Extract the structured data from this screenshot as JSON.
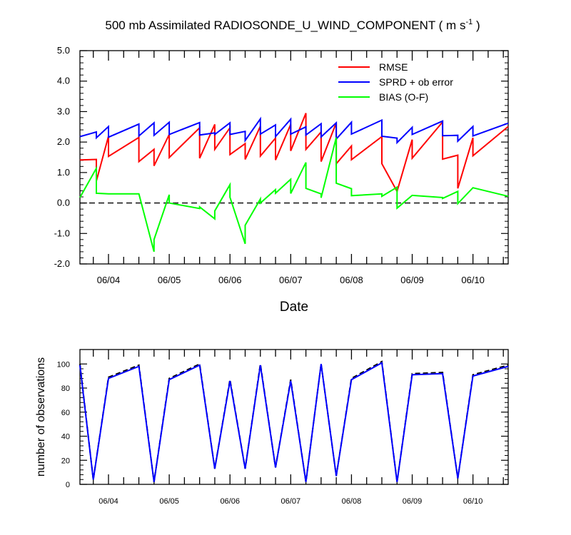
{
  "page": {
    "title_main": "500 mb Assimilated RADIOSONDE_U_WIND_COMPONENT ( m s",
    "title_sup": "-1",
    "title_end": " )"
  },
  "colors": {
    "rmse": "#ff0000",
    "spread": "#0000ff",
    "bias": "#00ff00",
    "obs_possible": "#000000",
    "obs_used": "#0000ff",
    "zero_line": "#000000"
  },
  "chart_data": [
    {
      "type": "line",
      "title": "500 mb Assimilated RADIOSONDE_U_WIND_COMPONENT ( m s-1 )",
      "xlabel": "Date",
      "ylabel": "",
      "x_unit": "days (ticks at 00Z)",
      "xlim": [
        3.53,
        10.58
      ],
      "ylim": [
        -2.0,
        5.0
      ],
      "yticks": [
        -2.0,
        -1.0,
        0.0,
        1.0,
        2.0,
        3.0,
        4.0,
        5.0
      ],
      "ytick_labels": [
        "-2.0",
        "-1.0",
        "0.0",
        "1.0",
        "2.0",
        "3.0",
        "4.0",
        "5.0"
      ],
      "xticks": [
        4,
        5,
        6,
        7,
        8,
        9,
        10
      ],
      "xtick_labels": [
        "06/04",
        "06/05",
        "06/06",
        "06/07",
        "06/08",
        "06/09",
        "06/10"
      ],
      "reference_line": {
        "y": 0.0,
        "style": "dashed"
      },
      "legend_position": "top-right",
      "series": [
        {
          "name": "RMSE",
          "color": "#ff0000",
          "points": [
            [
              3.53,
              1.41
            ],
            [
              3.8,
              1.43
            ],
            [
              3.8,
              0.72
            ],
            [
              4.0,
              2.19
            ],
            [
              4.0,
              1.53
            ],
            [
              4.5,
              2.15
            ],
            [
              4.5,
              1.36
            ],
            [
              4.75,
              1.76
            ],
            [
              4.75,
              1.22
            ],
            [
              5.0,
              2.25
            ],
            [
              5.0,
              1.49
            ],
            [
              5.5,
              2.47
            ],
            [
              5.5,
              1.47
            ],
            [
              5.75,
              2.58
            ],
            [
              5.75,
              1.76
            ],
            [
              6.0,
              2.47
            ],
            [
              6.0,
              1.59
            ],
            [
              6.25,
              1.95
            ],
            [
              6.25,
              1.43
            ],
            [
              6.5,
              2.52
            ],
            [
              6.5,
              1.54
            ],
            [
              6.75,
              2.13
            ],
            [
              6.75,
              1.41
            ],
            [
              7.0,
              2.58
            ],
            [
              7.0,
              1.71
            ],
            [
              7.25,
              2.95
            ],
            [
              7.25,
              1.76
            ],
            [
              7.5,
              2.33
            ],
            [
              7.5,
              1.36
            ],
            [
              7.75,
              2.63
            ],
            [
              7.75,
              1.29
            ],
            [
              8.0,
              1.87
            ],
            [
              8.0,
              1.42
            ],
            [
              8.5,
              2.18
            ],
            [
              8.5,
              1.29
            ],
            [
              8.75,
              0.38
            ],
            [
              9.0,
              2.08
            ],
            [
              9.0,
              1.47
            ],
            [
              9.5,
              2.66
            ],
            [
              9.5,
              1.44
            ],
            [
              9.75,
              1.57
            ],
            [
              9.75,
              0.48
            ],
            [
              10.0,
              2.14
            ],
            [
              10.0,
              1.55
            ],
            [
              10.58,
              2.51
            ]
          ]
        },
        {
          "name": "SPRD + ob error",
          "color": "#0000ff",
          "points": [
            [
              3.53,
              2.18
            ],
            [
              3.8,
              2.33
            ],
            [
              3.8,
              2.14
            ],
            [
              4.0,
              2.51
            ],
            [
              4.0,
              2.16
            ],
            [
              4.5,
              2.59
            ],
            [
              4.5,
              2.2
            ],
            [
              4.75,
              2.63
            ],
            [
              4.75,
              2.22
            ],
            [
              5.0,
              2.65
            ],
            [
              5.0,
              2.25
            ],
            [
              5.5,
              2.64
            ],
            [
              5.5,
              2.23
            ],
            [
              5.75,
              2.3
            ],
            [
              5.75,
              2.25
            ],
            [
              6.0,
              2.63
            ],
            [
              6.0,
              2.25
            ],
            [
              6.25,
              2.35
            ],
            [
              6.25,
              2.05
            ],
            [
              6.5,
              2.76
            ],
            [
              6.5,
              2.26
            ],
            [
              6.75,
              2.56
            ],
            [
              6.75,
              2.18
            ],
            [
              7.0,
              2.75
            ],
            [
              7.0,
              2.26
            ],
            [
              7.25,
              2.5
            ],
            [
              7.25,
              2.23
            ],
            [
              7.5,
              2.6
            ],
            [
              7.5,
              2.17
            ],
            [
              7.75,
              2.63
            ],
            [
              7.75,
              2.1
            ],
            [
              8.0,
              2.65
            ],
            [
              8.0,
              2.26
            ],
            [
              8.5,
              2.72
            ],
            [
              8.5,
              2.19
            ],
            [
              8.75,
              2.13
            ],
            [
              8.75,
              1.98
            ],
            [
              9.0,
              2.48
            ],
            [
              9.0,
              2.25
            ],
            [
              9.5,
              2.69
            ],
            [
              9.5,
              2.21
            ],
            [
              9.75,
              2.22
            ],
            [
              9.75,
              2.03
            ],
            [
              10.0,
              2.51
            ],
            [
              10.0,
              2.2
            ],
            [
              10.58,
              2.62
            ]
          ]
        },
        {
          "name": "BIAS (O-F)",
          "color": "#00ff00",
          "points": [
            [
              3.53,
              0.18
            ],
            [
              3.8,
              1.14
            ],
            [
              3.8,
              0.32
            ],
            [
              4.0,
              0.3
            ],
            [
              4.5,
              0.3
            ],
            [
              4.75,
              -1.6
            ],
            [
              4.75,
              -1.2
            ],
            [
              5.0,
              0.27
            ],
            [
              5.0,
              0.0
            ],
            [
              5.5,
              -0.18
            ],
            [
              5.5,
              -0.13
            ],
            [
              5.75,
              -0.52
            ],
            [
              5.75,
              -0.26
            ],
            [
              6.0,
              0.6
            ],
            [
              6.0,
              0.19
            ],
            [
              6.25,
              -1.34
            ],
            [
              6.25,
              -0.73
            ],
            [
              6.5,
              0.13
            ],
            [
              6.5,
              0.0
            ],
            [
              6.75,
              0.44
            ],
            [
              6.75,
              0.32
            ],
            [
              7.0,
              0.78
            ],
            [
              7.0,
              0.31
            ],
            [
              7.25,
              1.33
            ],
            [
              7.25,
              0.48
            ],
            [
              7.5,
              0.3
            ],
            [
              7.5,
              0.17
            ],
            [
              7.75,
              2.15
            ],
            [
              7.75,
              0.65
            ],
            [
              8.0,
              0.47
            ],
            [
              8.0,
              0.24
            ],
            [
              8.5,
              0.3
            ],
            [
              8.5,
              0.22
            ],
            [
              8.75,
              0.52
            ],
            [
              8.75,
              -0.17
            ],
            [
              9.0,
              0.25
            ],
            [
              9.5,
              0.18
            ],
            [
              9.5,
              0.15
            ],
            [
              9.75,
              0.38
            ],
            [
              9.75,
              -0.02
            ],
            [
              10.0,
              0.5
            ],
            [
              10.58,
              0.22
            ]
          ]
        }
      ]
    },
    {
      "type": "line",
      "title": "",
      "xlabel": "",
      "ylabel": "number of observations",
      "xlim": [
        3.53,
        10.58
      ],
      "ylim": [
        0,
        112
      ],
      "yticks": [
        0,
        20,
        40,
        60,
        80,
        100
      ],
      "ytick_labels": [
        "0",
        "20",
        "40",
        "60",
        "80",
        "100"
      ],
      "xticks": [
        4,
        5,
        6,
        7,
        8,
        9,
        10
      ],
      "xtick_labels": [
        "06/04",
        "06/05",
        "06/06",
        "06/07",
        "06/08",
        "06/09",
        "06/10"
      ],
      "x": [
        3.53,
        3.75,
        4.0,
        4.5,
        4.75,
        5.0,
        5.5,
        5.75,
        6.0,
        6.25,
        6.5,
        6.75,
        7.0,
        7.25,
        7.5,
        7.75,
        8.0,
        8.5,
        8.75,
        9.0,
        9.5,
        9.75,
        10.0,
        10.58
      ],
      "series": [
        {
          "color": "#000000",
          "style": "dashed",
          "values": [
            100,
            4,
            89,
            99,
            2,
            88,
            100,
            13,
            87,
            13,
            100,
            14,
            87,
            2,
            100,
            7,
            88,
            102,
            2,
            92,
            93,
            5,
            91,
            99
          ]
        },
        {
          "color": "#0000ff",
          "style": "solid",
          "values": [
            99,
            4,
            88,
            98,
            2,
            87,
            99,
            13,
            86,
            13,
            99,
            14,
            86,
            2,
            100,
            7,
            87,
            101,
            2,
            91,
            92,
            5,
            90,
            98
          ]
        }
      ]
    }
  ]
}
